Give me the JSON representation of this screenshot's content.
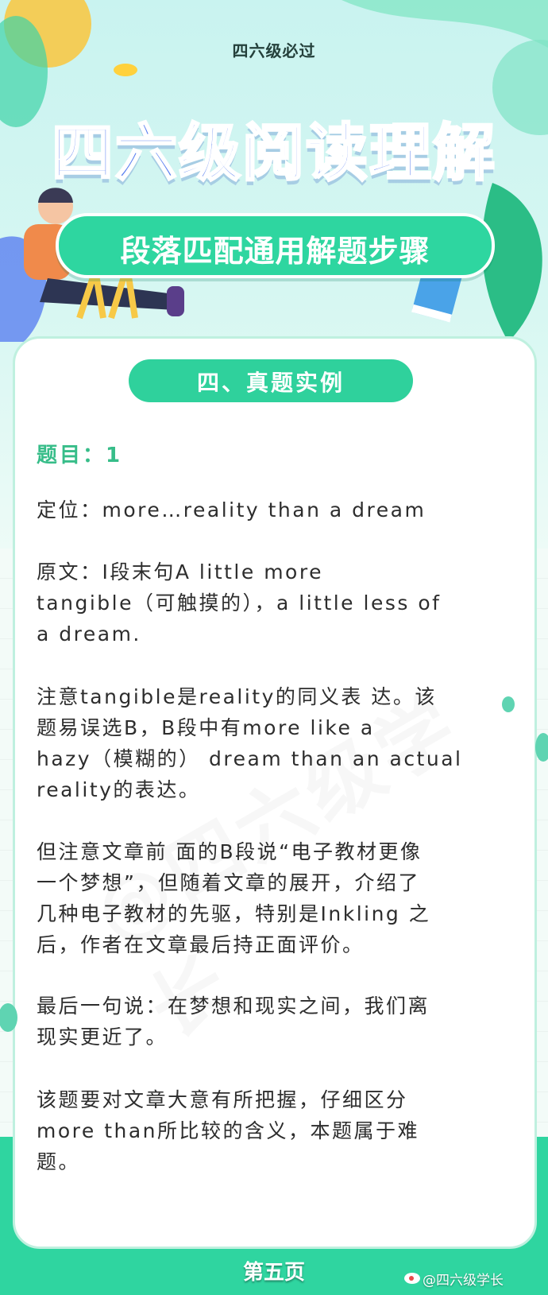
{
  "header": {
    "site_tag": "四六级必过",
    "title": "四六级阅读理解",
    "subtitle": "段落匹配通用解题步骤"
  },
  "section": {
    "heading": "四、真题实例"
  },
  "question": {
    "title": "题目：1",
    "paragraphs": [
      [
        "定位：more…reality than a dream"
      ],
      [
        "原文：I段末句A little more",
        "tangible（可触摸的），a little less of",
        "a dream."
      ],
      [
        "注意tangible是reality的同义表 达。该",
        "题易误选B，B段中有more like a",
        "hazy（模糊的） dream than an actual",
        "reality的表达。"
      ],
      [
        "但注意文章前 面的B段说“电子教材更像",
        "一个梦想”，但随着文章的展开，介绍了",
        "几种电子教材的先驱，特别是Inkling 之",
        "后，作者在文章最后持正面评价。"
      ],
      [
        "最后一句说：在梦想和现实之间，我们离",
        "现实更近了。"
      ],
      [
        "该题要对文章大意有所把握，仔细区分",
        "more than所比较的含义，本题属于难",
        "题。"
      ]
    ]
  },
  "footer": {
    "page_label": "第五页",
    "weibo_handle": "@四六级学长"
  },
  "watermark": "@四六级学长",
  "colors": {
    "accent_green": "#2fd5a0",
    "title_blue": "#5a7ff0",
    "question_green": "#37bd89"
  },
  "icons": [
    "person-illustration",
    "leaf-decoration",
    "book-icon",
    "weibo-icon"
  ]
}
